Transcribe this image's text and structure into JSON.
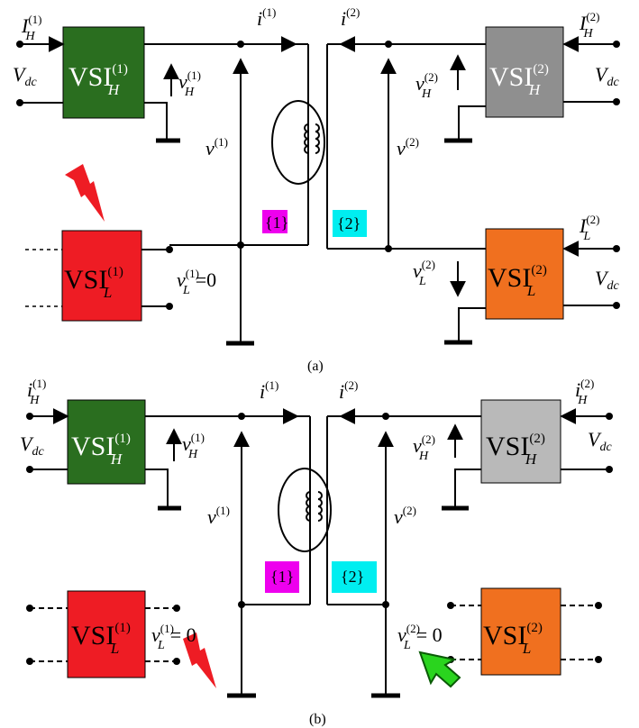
{
  "colors": {
    "vsi_h1": "#2a6e1f",
    "vsi_h2_a": "#8f8f8f",
    "vsi_h2_b": "#b9b9b9",
    "vsi_l1": "#ee1c24",
    "vsi_l2": "#f0701f",
    "tag1": "#ee00ee",
    "tag2": "#00eef0",
    "fault": "#ee1c24",
    "arrow_green": "#2ad41e"
  },
  "panel_a": {
    "caption": "(a)",
    "vsi_h1": {
      "main": "VSI",
      "sup": "(1)",
      "sub": "H"
    },
    "vsi_h2": {
      "main": "VSI",
      "sup": "(2)",
      "sub": "H"
    },
    "vsi_l1": {
      "main": "VSI",
      "sup": "(1)",
      "sub": "L"
    },
    "vsi_l2": {
      "main": "VSI",
      "sup": "(2)",
      "sub": "L"
    },
    "in_h1": {
      "main": "I",
      "sub": "H",
      "sup": "(1)"
    },
    "in_h2": {
      "main": "I",
      "sub": "H",
      "sup": "(2)"
    },
    "in_l2": {
      "main": "I",
      "sub": "L",
      "sup": "(2)"
    },
    "vdc": {
      "main": "V",
      "sub": "dc"
    },
    "i1": {
      "main": "i",
      "sup": "(1)"
    },
    "i2": {
      "main": "i",
      "sup": "(2)"
    },
    "v1": {
      "main": "v",
      "sup": "(1)"
    },
    "v2": {
      "main": "v",
      "sup": "(2)"
    },
    "vh1": {
      "main": "v",
      "sub": "H",
      "sup": "(1)"
    },
    "vh2": {
      "main": "v",
      "sub": "H",
      "sup": "(2)"
    },
    "vl1": {
      "main": "v",
      "sub": "L",
      "sup": "(1)",
      "eq": "=0"
    },
    "vl2": {
      "main": "v",
      "sub": "L",
      "sup": "(2)"
    },
    "tag1": "{1}",
    "tag2": "{2}"
  },
  "panel_b": {
    "caption": "(b)",
    "vsi_h1": {
      "main": "VSI",
      "sup": "(1)",
      "sub": "H"
    },
    "vsi_h2": {
      "main": "VSI",
      "sup": "(2)",
      "sub": "H"
    },
    "vsi_l1": {
      "main": "VSI",
      "sup": "(1)",
      "sub": "L"
    },
    "vsi_l2": {
      "main": "VSI",
      "sup": "(2)",
      "sub": "L"
    },
    "in_h1": {
      "main": "i",
      "sub": "H",
      "sup": "(1)"
    },
    "in_h2": {
      "main": "i",
      "sub": "H",
      "sup": "(2)"
    },
    "vdc": {
      "main": "V",
      "sub": "dc"
    },
    "i1": {
      "main": "i",
      "sup": "(1)"
    },
    "i2": {
      "main": "i",
      "sup": "(2)"
    },
    "v1": {
      "main": "v",
      "sup": "(1)"
    },
    "v2": {
      "main": "v",
      "sup": "(2)"
    },
    "vh1": {
      "main": "v",
      "sub": "H",
      "sup": "(1)"
    },
    "vh2": {
      "main": "v",
      "sub": "H",
      "sup": "(2)"
    },
    "vl1": {
      "main": "v",
      "sub": "L",
      "sup": "(1)",
      "eq": "= 0"
    },
    "vl2": {
      "main": "v",
      "sub": "L",
      "sup": "(2)",
      "eq": "= 0"
    },
    "tag1": "{1}",
    "tag2": "{2}"
  }
}
